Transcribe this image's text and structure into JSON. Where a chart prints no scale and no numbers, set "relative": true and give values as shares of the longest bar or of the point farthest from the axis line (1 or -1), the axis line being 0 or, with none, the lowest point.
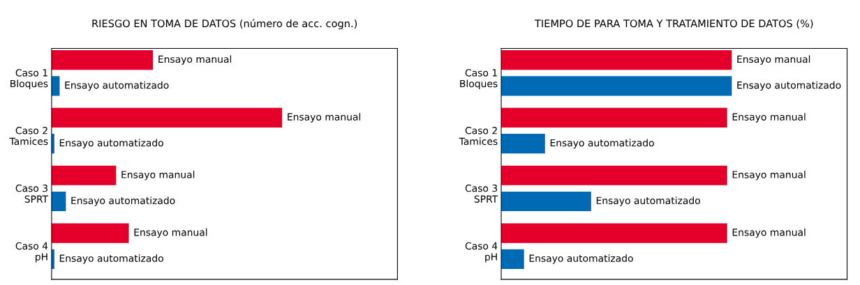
{
  "chart_data": [
    {
      "type": "bar",
      "orientation": "horizontal",
      "relative": true,
      "title": "RIESGO EN TOMA DE DATOS (número de acc. cogn.)",
      "categories": [
        "Caso 1\nBloques",
        "Caso 2\nTamices",
        "Caso 3\nSPRT",
        "Caso 4\npH"
      ],
      "series": [
        {
          "name": "Ensayo manual",
          "color": "#e4002b",
          "values": [
            0.44,
            1,
            0.28,
            0.335
          ]
        },
        {
          "name": "Ensayo automatizado",
          "color": "#006ab4",
          "values": [
            0.035,
            0.012,
            0.062,
            0.012
          ]
        }
      ],
      "grid": false,
      "legend": false
    },
    {
      "type": "bar",
      "orientation": "horizontal",
      "relative": true,
      "title": "TIEMPO DE PARA TOMA Y TRATAMIENTO DE DATOS (%)",
      "categories": [
        "Caso 1\nBloques",
        "Caso 2\nTamices",
        "Caso 3\nSPRT",
        "Caso 4\npH"
      ],
      "series": [
        {
          "name": "Ensayo manual",
          "color": "#e4002b",
          "values": [
            1,
            0.98,
            0.98,
            0.98
          ]
        },
        {
          "name": "Ensayo automatizado",
          "color": "#006ab4",
          "values": [
            1,
            0.19,
            0.39,
            0.099
          ]
        }
      ],
      "grid": false,
      "legend": false
    }
  ]
}
